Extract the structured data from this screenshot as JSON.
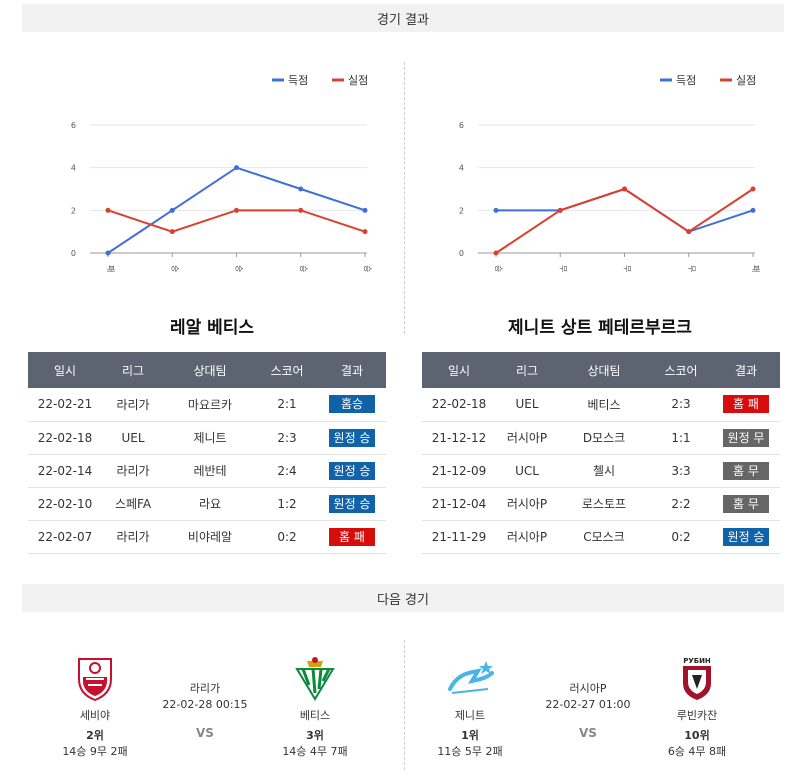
{
  "headers": {
    "results": "경기 결과",
    "next": "다음 경기"
  },
  "legend": {
    "scored": "득점",
    "conceded": "실점"
  },
  "colors": {
    "scored": "#3f6fd8",
    "conceded": "#d9412f",
    "win": "#1163a9",
    "loss": "#d50d0d",
    "draw": "#666666"
  },
  "chart_data": [
    {
      "type": "line",
      "categories": [
        "패",
        "승",
        "승",
        "승",
        "승"
      ],
      "ylim": [
        0,
        6
      ],
      "yticks": [
        0,
        2,
        4,
        6
      ],
      "series": [
        {
          "name": "득점",
          "values": [
            0,
            2,
            4,
            3,
            2
          ]
        },
        {
          "name": "실점",
          "values": [
            2,
            1,
            2,
            2,
            1
          ]
        }
      ]
    },
    {
      "type": "line",
      "categories": [
        "승",
        "무",
        "무",
        "무",
        "패"
      ],
      "ylim": [
        0,
        6
      ],
      "yticks": [
        0,
        2,
        4,
        6
      ],
      "series": [
        {
          "name": "득점",
          "values": [
            2,
            2,
            3,
            1,
            2
          ]
        },
        {
          "name": "실점",
          "values": [
            0,
            2,
            3,
            1,
            3
          ]
        }
      ]
    }
  ],
  "teams": [
    {
      "name": "레알 베티스",
      "columns": [
        "일시",
        "리그",
        "상대팀",
        "스코어",
        "결과"
      ],
      "rows": [
        {
          "date": "22-02-21",
          "league": "라리가",
          "opponent": "마요르카",
          "score": "2:1",
          "result": "홈승",
          "type": "win"
        },
        {
          "date": "22-02-18",
          "league": "UEL",
          "opponent": "제니트",
          "score": "2:3",
          "result": "원정 승",
          "type": "win"
        },
        {
          "date": "22-02-14",
          "league": "라리가",
          "opponent": "레반테",
          "score": "2:4",
          "result": "원정 승",
          "type": "win"
        },
        {
          "date": "22-02-10",
          "league": "스페FA",
          "opponent": "라요",
          "score": "1:2",
          "result": "원정 승",
          "type": "win"
        },
        {
          "date": "22-02-07",
          "league": "라리가",
          "opponent": "비야레알",
          "score": "0:2",
          "result": "홈 패",
          "type": "loss"
        }
      ]
    },
    {
      "name": "제니트 상트 페테르부르크",
      "columns": [
        "일시",
        "리그",
        "상대팀",
        "스코어",
        "결과"
      ],
      "rows": [
        {
          "date": "22-02-18",
          "league": "UEL",
          "opponent": "베티스",
          "score": "2:3",
          "result": "홈 패",
          "type": "loss"
        },
        {
          "date": "21-12-12",
          "league": "러시아P",
          "opponent": "D모스크",
          "score": "1:1",
          "result": "원정 무",
          "type": "draw"
        },
        {
          "date": "21-12-09",
          "league": "UCL",
          "opponent": "첼시",
          "score": "3:3",
          "result": "홈 무",
          "type": "draw"
        },
        {
          "date": "21-12-04",
          "league": "러시아P",
          "opponent": "로스토프",
          "score": "2:2",
          "result": "홈 무",
          "type": "draw"
        },
        {
          "date": "21-11-29",
          "league": "러시아P",
          "opponent": "C모스크",
          "score": "0:2",
          "result": "원정 승",
          "type": "win"
        }
      ]
    }
  ],
  "next_matches": [
    {
      "league": "라리가",
      "datetime": "22-02-28 00:15",
      "vs": "VS",
      "home": {
        "name": "세비야",
        "rank": "2위",
        "record": "14승 9무 2패"
      },
      "away": {
        "name": "베티스",
        "rank": "3위",
        "record": "14승 4무 7패"
      }
    },
    {
      "league": "러시아P",
      "datetime": "22-02-27 01:00",
      "vs": "VS",
      "home": {
        "name": "제니트",
        "rank": "1위",
        "record": "11승 5무 2패"
      },
      "away": {
        "name": "루빈카잔",
        "rank": "10위",
        "record": "6승 4무 8패",
        "logo_text": "РУБИН"
      }
    }
  ]
}
